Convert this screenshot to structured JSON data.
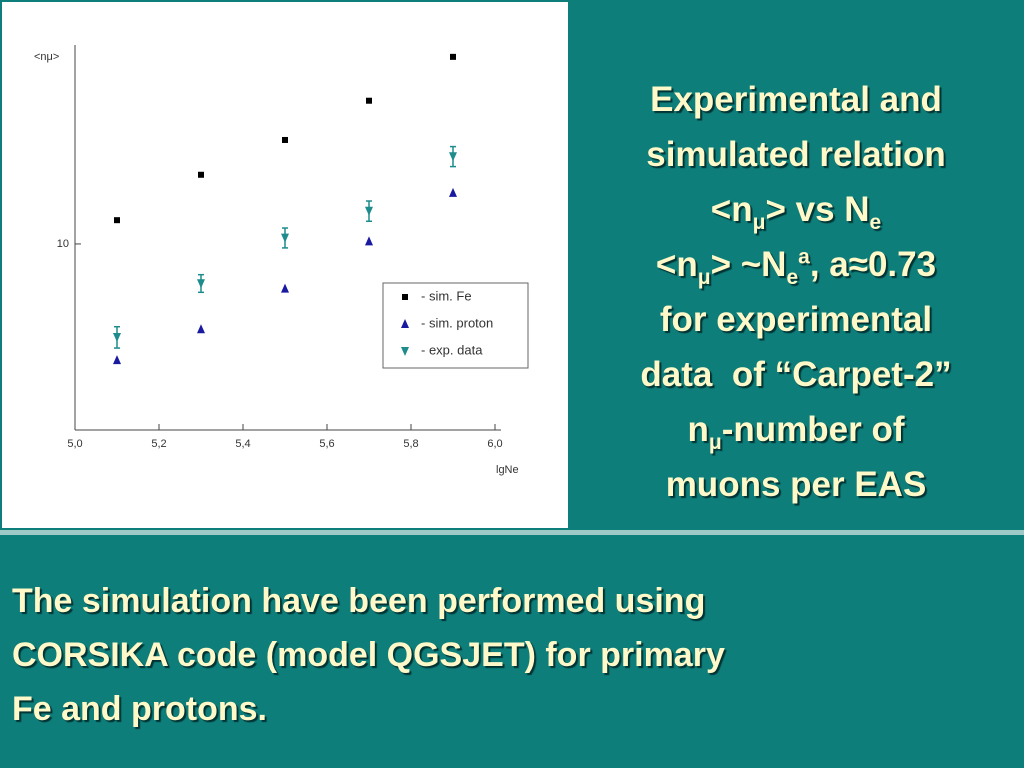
{
  "chart_data": {
    "type": "scatter",
    "yscale": "log",
    "ylabel": "<nμ>",
    "xlabel": "lgNe",
    "x": [
      5.1,
      5.3,
      5.5,
      5.7,
      5.9
    ],
    "xlim": [
      5.0,
      6.0
    ],
    "xticks": [
      {
        "value": 5.0,
        "label": "5,0"
      },
      {
        "value": 5.2,
        "label": "5,2"
      },
      {
        "value": 5.4,
        "label": "5,4"
      },
      {
        "value": 5.6,
        "label": "5,6"
      },
      {
        "value": 5.8,
        "label": "5,8"
      },
      {
        "value": 6.0,
        "label": "6,0"
      }
    ],
    "ylim": [
      2.4,
      46
    ],
    "yticks": [
      10
    ],
    "legend": "right",
    "series": [
      {
        "name": "- sim. Fe",
        "color": "#000000",
        "marker": "square",
        "values": [
          12.0,
          17.0,
          22.2,
          30.0,
          42.0
        ]
      },
      {
        "name": "- sim. proton",
        "color": "#1a1aa0",
        "marker": "triangle-up",
        "values": [
          4.1,
          5.2,
          7.1,
          10.2,
          14.8
        ]
      },
      {
        "name": "- exp. data",
        "color": "#1e8c8c",
        "marker": "triangle-down",
        "values": [
          4.9,
          7.4,
          10.5,
          12.9,
          19.6
        ],
        "errors": [
          0.4,
          0.5,
          0.8,
          1.0,
          1.5
        ]
      }
    ]
  },
  "side_text": [
    [
      "Experimental and"
    ],
    [
      "simulated relation"
    ],
    [
      "<n",
      {
        "sub": "μ"
      },
      "> vs N",
      {
        "sub": "e"
      }
    ],
    [
      "<n",
      {
        "sub": "μ"
      },
      "> ~N",
      {
        "sub": "e"
      },
      {
        "sup": "a"
      },
      ", a≈0.73"
    ],
    [
      "for experimental"
    ],
    [
      "data  of “Carpet-2”"
    ],
    [
      "n",
      {
        "sub": "μ"
      },
      "-number of"
    ],
    [
      "muons per EAS"
    ]
  ],
  "bottom_text": [
    "The simulation have been performed using",
    "CORSIKA code (model QGSJET) for primary",
    "Fe and protons."
  ]
}
